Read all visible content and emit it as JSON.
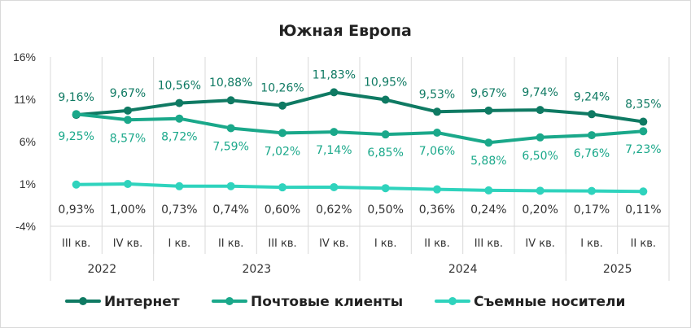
{
  "chart_data": {
    "type": "line",
    "title": "Южная Европа",
    "xlabel": "",
    "ylabel": "",
    "ylim": [
      -4,
      16
    ],
    "yticks": [
      "16%",
      "11%",
      "6%",
      "1%",
      "-4%"
    ],
    "ytick_values": [
      16,
      11,
      6,
      1,
      -4
    ],
    "grid": "vertical",
    "legend_position": "bottom",
    "categories": [
      "III кв.",
      "IV кв.",
      "I кв.",
      "II кв.",
      "III кв.",
      "IV кв.",
      "I кв.",
      "II кв.",
      "III кв.",
      "IV кв.",
      "I кв.",
      "II кв."
    ],
    "years": [
      {
        "label": "2022",
        "span": 2
      },
      {
        "label": "2023",
        "span": 4
      },
      {
        "label": "2024",
        "span": 4
      },
      {
        "label": "2025",
        "span": 2
      }
    ],
    "series": [
      {
        "name": "Интернет",
        "color": "#0f7a63",
        "values": [
          9.16,
          9.67,
          10.56,
          10.88,
          10.26,
          11.83,
          10.95,
          9.53,
          9.67,
          9.74,
          9.24,
          8.35
        ],
        "labels": [
          "9,16%",
          "9,67%",
          "10,56%",
          "10,88%",
          "10,26%",
          "11,83%",
          "10,95%",
          "9,53%",
          "9,67%",
          "9,74%",
          "9,24%",
          "8,35%"
        ]
      },
      {
        "name": "Почтовые клиенты",
        "color": "#1aa88a",
        "values": [
          9.25,
          8.57,
          8.72,
          7.59,
          7.02,
          7.14,
          6.85,
          7.06,
          5.88,
          6.5,
          6.76,
          7.23
        ],
        "labels": [
          "9,25%",
          "8,57%",
          "8,72%",
          "7,59%",
          "7,02%",
          "7,14%",
          "6,85%",
          "7,06%",
          "5,88%",
          "6,50%",
          "6,76%",
          "7,23%"
        ]
      },
      {
        "name": "Съемные носители",
        "color": "#2fd3bd",
        "values": [
          0.93,
          1.0,
          0.73,
          0.74,
          0.6,
          0.62,
          0.5,
          0.36,
          0.24,
          0.2,
          0.17,
          0.11
        ],
        "labels": [
          "0,93%",
          "1,00%",
          "0,73%",
          "0,74%",
          "0,60%",
          "0,62%",
          "0,50%",
          "0,36%",
          "0,24%",
          "0,20%",
          "0,17%",
          "0,11%"
        ]
      }
    ]
  },
  "colors": {
    "label_dark": "#0f7a63",
    "label_mid": "#1aa88a",
    "label_gray": "#333333",
    "grid": "#d9d9d9"
  }
}
